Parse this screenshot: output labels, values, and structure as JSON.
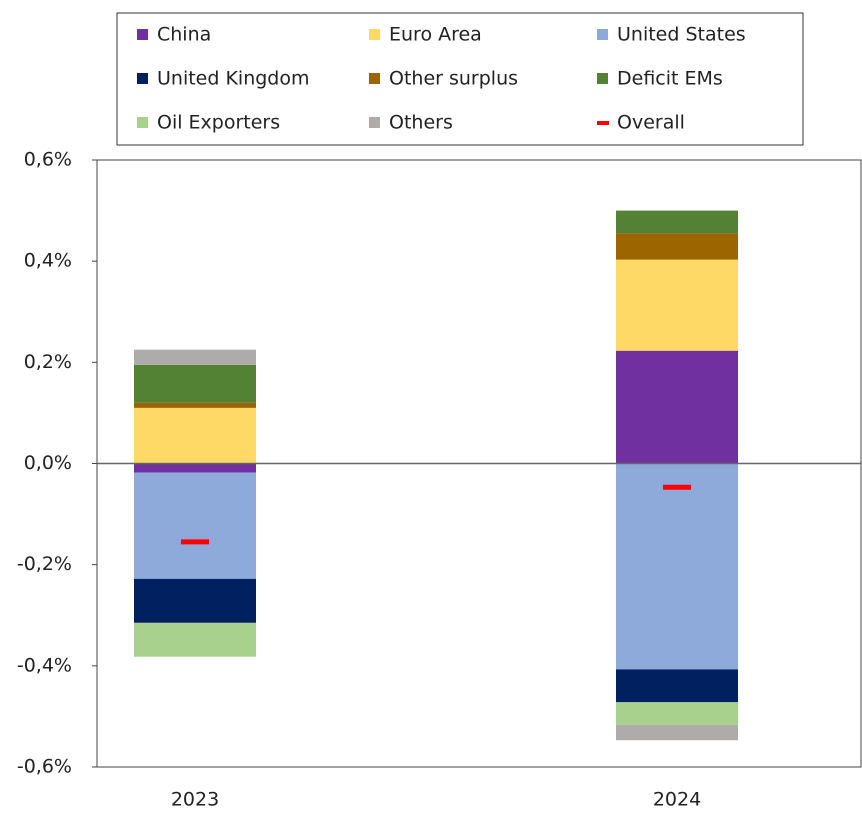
{
  "chart_data": {
    "type": "stacked_bar",
    "categories": [
      "2023",
      "2024"
    ],
    "series": [
      {
        "name": "China",
        "color": "#7030a0",
        "values": [
          -0.018,
          0.223
        ]
      },
      {
        "name": "Euro Area",
        "color": "#ffd966",
        "values": [
          0.11,
          0.18
        ]
      },
      {
        "name": "United States",
        "color": "#8eaadb",
        "values": [
          -0.21,
          -0.407
        ]
      },
      {
        "name": "United Kingdom",
        "color": "#002060",
        "values": [
          -0.087,
          -0.065
        ]
      },
      {
        "name": "Other surplus",
        "color": "#9c6500",
        "values": [
          0.01,
          0.052
        ]
      },
      {
        "name": "Deficit EMs",
        "color": "#548235",
        "values": [
          0.075,
          0.045
        ]
      },
      {
        "name": "Oil Exporters",
        "color": "#a9d18e",
        "values": [
          -0.067,
          -0.045
        ]
      },
      {
        "name": "Others",
        "color": "#afabab",
        "values": [
          0.03,
          -0.03
        ]
      },
      {
        "name": "Overall",
        "color": "#ff0000",
        "marker": "dash",
        "values": [
          -0.155,
          -0.047
        ]
      }
    ],
    "ylim": [
      -0.6,
      0.6
    ],
    "yticks": [
      {
        "value": 0.6,
        "label": "0,6%"
      },
      {
        "value": 0.4,
        "label": "0,4%"
      },
      {
        "value": 0.2,
        "label": "0,2%"
      },
      {
        "value": 0,
        "label": "0,0%"
      },
      {
        "value": -0.2,
        "label": "-0,2%"
      },
      {
        "value": -0.4,
        "label": "-0,4%"
      },
      {
        "value": -0.6,
        "label": "-0,6%"
      }
    ],
    "legend": "top"
  }
}
